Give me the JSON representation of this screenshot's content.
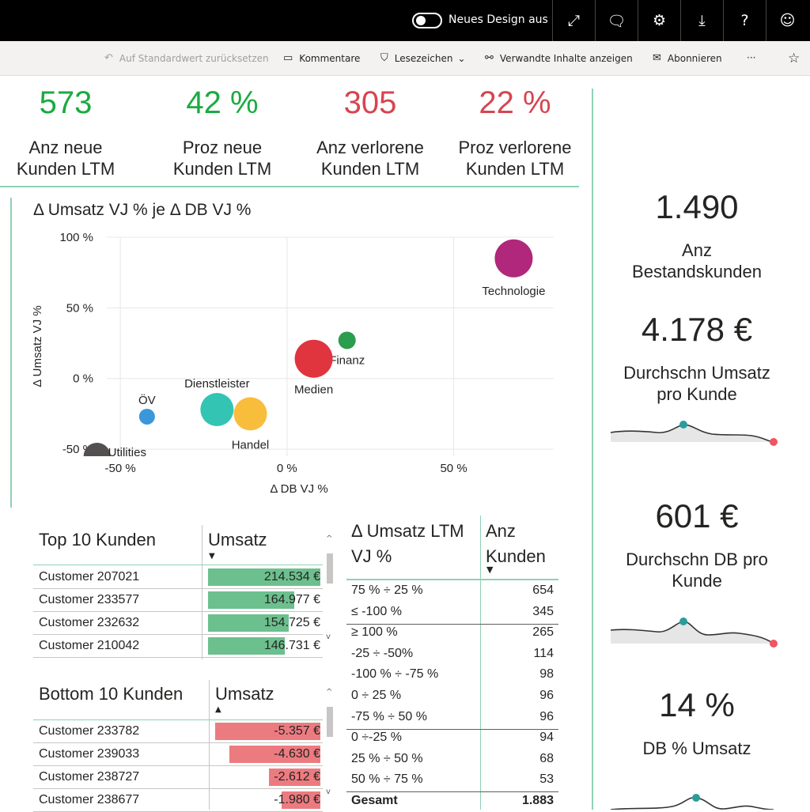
{
  "topbar": {
    "toggle_label": "Neues Design aus",
    "icons": [
      "expand-icon",
      "comment-icon",
      "gear-icon",
      "download-icon",
      "help-icon",
      "smiley-icon"
    ]
  },
  "actions": {
    "reset": "Auf Standardwert zurücksetzen",
    "comments": "Kommentare",
    "bookmarks": "Lesezeichen",
    "related": "Verwandte Inhalte anzeigen",
    "subscribe": "Abonnieren",
    "more": "···"
  },
  "kpis": [
    {
      "value": "573",
      "label1": "Anz neue",
      "label2": "Kunden LTM",
      "color": "#1aab40"
    },
    {
      "value": "42 %",
      "label1": "Proz neue",
      "label2": "Kunden LTM",
      "color": "#1aab40"
    },
    {
      "value": "305",
      "label1": "Anz verlorene",
      "label2": "Kunden LTM",
      "color": "#d64550"
    },
    {
      "value": "22 %",
      "label1": "Proz verlorene",
      "label2": "Kunden LTM",
      "color": "#d64550"
    }
  ],
  "right_kpis": [
    {
      "value": "1.490",
      "label1": "Anz",
      "label2": "Bestandskunden"
    },
    {
      "value": "4.178 €",
      "label1": "Durchschn Umsatz",
      "label2": "pro Kunde"
    },
    {
      "value": "601 €",
      "label1": "Durchschn DB pro",
      "label2": "Kunde"
    },
    {
      "value": "14 %",
      "label1": "DB % Umsatz",
      "label2": ""
    }
  ],
  "chart_data": {
    "type": "scatter",
    "title": "Δ Umsatz VJ % je Δ DB VJ %",
    "xlabel": "Δ DB VJ %",
    "ylabel": "Δ Umsatz VJ %",
    "xlim": [
      -60,
      80
    ],
    "ylim": [
      -55,
      100
    ],
    "x_ticks": [
      -50,
      0,
      50
    ],
    "x_tick_labels": [
      "-50 %",
      "0 %",
      "50 %"
    ],
    "y_ticks": [
      -50,
      0,
      50,
      100
    ],
    "y_tick_labels": [
      "-50 %",
      "0 %",
      "50 %",
      "100 %"
    ],
    "points": [
      {
        "name": "Technologie",
        "x": 68,
        "y": 85,
        "size": 24,
        "color": "#b0277b"
      },
      {
        "name": "Finanz",
        "x": 18,
        "y": 27,
        "size": 11,
        "color": "#2a9d4e"
      },
      {
        "name": "Medien",
        "x": 8,
        "y": 14,
        "size": 24,
        "color": "#e0343f"
      },
      {
        "name": "Dienstleister",
        "x": -21,
        "y": -22,
        "size": 21,
        "color": "#33c4b4"
      },
      {
        "name": "Handel",
        "x": -11,
        "y": -25,
        "size": 21,
        "color": "#f8bd3b"
      },
      {
        "name": "ÖV",
        "x": -42,
        "y": -27,
        "size": 10,
        "color": "#3a97d9"
      },
      {
        "name": "Utilities",
        "x": -57,
        "y": -55,
        "size": 17,
        "color": "#555050"
      }
    ]
  },
  "top10": {
    "title": "Top 10 Kunden",
    "col": "Umsatz",
    "rows": [
      {
        "name": "Customer 207021",
        "value": "214.534 €",
        "amount": 214534
      },
      {
        "name": "Customer 233577",
        "value": "164.977 €",
        "amount": 164977
      },
      {
        "name": "Customer 232632",
        "value": "154.725 €",
        "amount": 154725
      },
      {
        "name": "Customer 210042",
        "value": "146.731 €",
        "amount": 146731
      }
    ]
  },
  "bottom10": {
    "title": "Bottom 10 Kunden",
    "col": "Umsatz",
    "rows": [
      {
        "name": "Customer 233782",
        "value": "-5.357 €",
        "amount": -5357
      },
      {
        "name": "Customer 239033",
        "value": "-4.630 €",
        "amount": -4630
      },
      {
        "name": "Customer 238727",
        "value": "-2.612 €",
        "amount": -2612
      },
      {
        "name": "Customer 238677",
        "value": "-1.980 €",
        "amount": -1980
      }
    ]
  },
  "dist_table": {
    "col1_line1": "Δ Umsatz LTM",
    "col1_line2": "VJ %",
    "col2_line1": "Anz",
    "col2_line2": "Kunden",
    "rows": [
      {
        "label": "75 % ÷ 25 %",
        "value": "654"
      },
      {
        "label": "≤ -100 %",
        "value": "345"
      },
      {
        "label": "≥ 100 %",
        "value": "265"
      },
      {
        "label": "-25 ÷ -50%",
        "value": "114"
      },
      {
        "label": "-100 % ÷ -75 %",
        "value": "98"
      },
      {
        "label": "0 ÷ 25 %",
        "value": "96"
      },
      {
        "label": "-75 % ÷ 50 %",
        "value": "96"
      },
      {
        "label": "0 ÷-25 %",
        "value": "94"
      },
      {
        "label": "25 % ÷ 50 %",
        "value": "68"
      },
      {
        "label": "50 % ÷ 75 %",
        "value": "53"
      }
    ],
    "total_label": "Gesamt",
    "total_value": "1.883"
  }
}
